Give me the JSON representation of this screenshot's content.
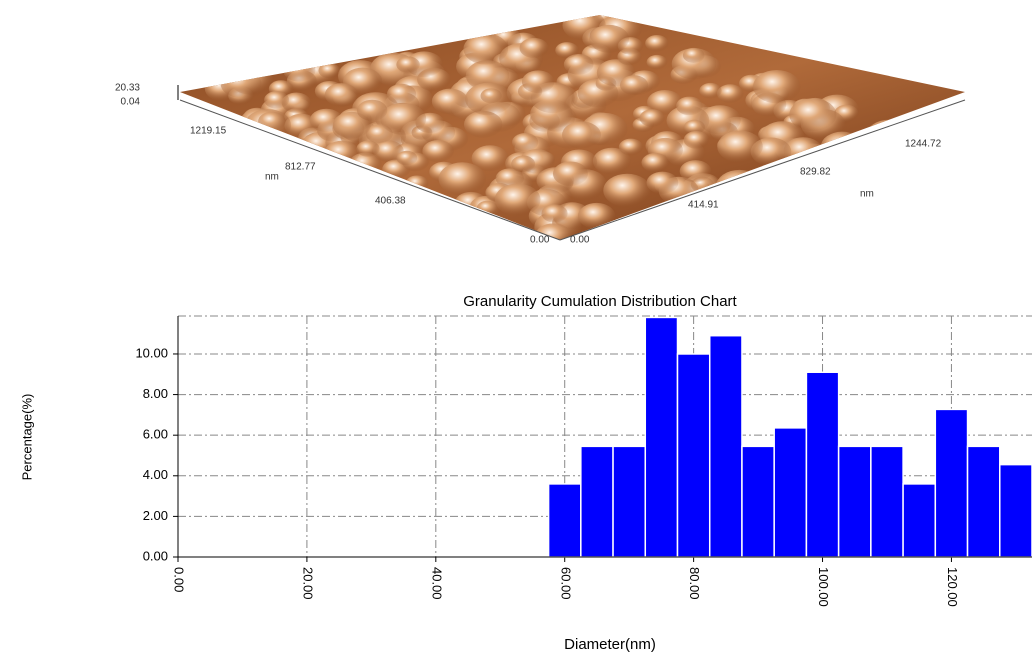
{
  "afm_image": {
    "z_labels": [
      "20.33",
      "0.04"
    ],
    "left_axis_labels": [
      "1219.15",
      "812.77",
      "406.38",
      "0.00"
    ],
    "left_axis_unit": "nm",
    "right_axis_labels": [
      "0.00",
      "414.91",
      "829.82",
      "1244.72"
    ],
    "right_axis_unit": "nm"
  },
  "chart_data": {
    "type": "histogram",
    "title": "Granularity Cumulation Distribution  Chart",
    "x_label": "Diameter(nm)",
    "y_label": "Percentage(%)",
    "color": "#0000ff",
    "bins": [
      57.5,
      62.5,
      67.5,
      72.5,
      77.5,
      82.5,
      87.5,
      92.5,
      97.5,
      102.5,
      107.5,
      112.5,
      117.5,
      122.5,
      127.5,
      132.5
    ],
    "values": [
      3.6,
      5.45,
      5.45,
      11.8,
      10.0,
      10.9,
      5.45,
      6.36,
      9.1,
      5.45,
      5.45,
      3.6,
      7.27,
      5.45,
      4.55
    ],
    "xlim": [
      0,
      132.5
    ],
    "ylim": [
      0,
      11.87
    ],
    "xticks": [
      {
        "value": 0,
        "label": "0.00"
      },
      {
        "value": 20,
        "label": "20.00"
      },
      {
        "value": 40,
        "label": "40.00"
      },
      {
        "value": 60,
        "label": "60.00"
      },
      {
        "value": 80,
        "label": "80.00"
      },
      {
        "value": 100,
        "label": "100.00"
      },
      {
        "value": 120,
        "label": "120.00"
      }
    ],
    "yticks": [
      {
        "value": 0,
        "label": "0.00"
      },
      {
        "value": 2,
        "label": "2.00"
      },
      {
        "value": 4,
        "label": "4.00"
      },
      {
        "value": 6,
        "label": "6.00"
      },
      {
        "value": 8,
        "label": "8.00"
      },
      {
        "value": 10,
        "label": "10.00"
      }
    ],
    "grid": true
  }
}
